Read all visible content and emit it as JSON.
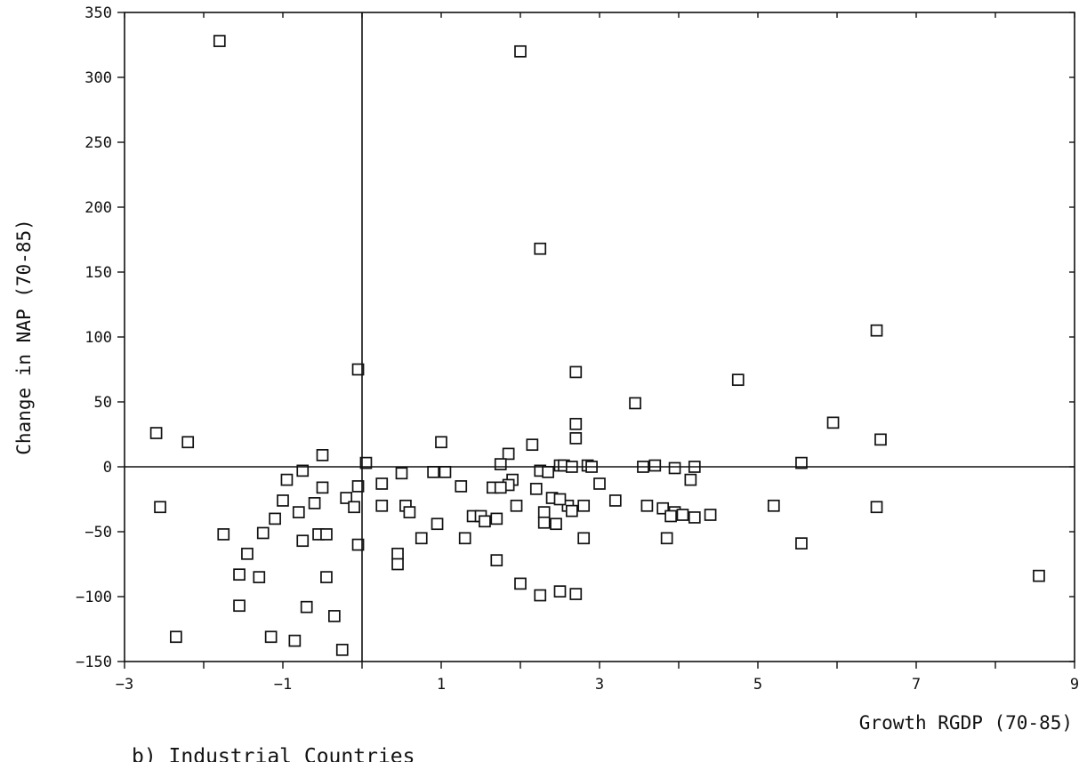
{
  "chart_data": {
    "type": "scatter",
    "title": "",
    "caption": "b) Industrial Countries",
    "xlabel": "Growth RGDP (70-85)",
    "ylabel": "Change in NAP (70-85)",
    "xlim": [
      -3,
      9
    ],
    "ylim": [
      -150,
      350
    ],
    "xticks": [
      -3,
      -1,
      1,
      3,
      5,
      7,
      9
    ],
    "yticks": [
      -150,
      -100,
      -50,
      0,
      50,
      100,
      150,
      200,
      250,
      300,
      350
    ],
    "reference_lines": {
      "x": 0,
      "y": 0
    },
    "marker": "open-square",
    "grid": false,
    "points": [
      [
        -1.8,
        328
      ],
      [
        2.0,
        320
      ],
      [
        2.25,
        168
      ],
      [
        6.5,
        105
      ],
      [
        -0.05,
        75
      ],
      [
        2.7,
        73
      ],
      [
        4.75,
        67
      ],
      [
        3.45,
        49
      ],
      [
        5.95,
        34
      ],
      [
        2.7,
        33
      ],
      [
        -2.6,
        26
      ],
      [
        2.7,
        22
      ],
      [
        6.55,
        21
      ],
      [
        -2.2,
        19
      ],
      [
        1.0,
        19
      ],
      [
        2.15,
        17
      ],
      [
        1.85,
        10
      ],
      [
        -0.5,
        9
      ],
      [
        0.05,
        3
      ],
      [
        5.55,
        3
      ],
      [
        1.75,
        2
      ],
      [
        2.5,
        1
      ],
      [
        2.55,
        1
      ],
      [
        2.65,
        0
      ],
      [
        2.85,
        1
      ],
      [
        2.9,
        0
      ],
      [
        3.55,
        0
      ],
      [
        3.7,
        1
      ],
      [
        3.95,
        -1
      ],
      [
        4.2,
        0
      ],
      [
        -0.75,
        -3
      ],
      [
        0.5,
        -5
      ],
      [
        0.9,
        -4
      ],
      [
        1.05,
        -4
      ],
      [
        2.25,
        -3
      ],
      [
        2.35,
        -4
      ],
      [
        4.15,
        -10
      ],
      [
        -0.95,
        -10
      ],
      [
        1.9,
        -10
      ],
      [
        1.85,
        -14
      ],
      [
        0.25,
        -13
      ],
      [
        1.25,
        -15
      ],
      [
        1.65,
        -16
      ],
      [
        1.75,
        -16
      ],
      [
        2.2,
        -17
      ],
      [
        3.0,
        -13
      ],
      [
        -0.05,
        -15
      ],
      [
        -0.5,
        -16
      ],
      [
        -1.0,
        -26
      ],
      [
        -0.2,
        -24
      ],
      [
        -0.1,
        -31
      ],
      [
        0.25,
        -30
      ],
      [
        0.55,
        -30
      ],
      [
        0.6,
        -35
      ],
      [
        1.95,
        -30
      ],
      [
        2.6,
        -30
      ],
      [
        2.65,
        -34
      ],
      [
        2.8,
        -30
      ],
      [
        3.2,
        -26
      ],
      [
        3.6,
        -30
      ],
      [
        3.8,
        -32
      ],
      [
        3.95,
        -35
      ],
      [
        4.05,
        -37
      ],
      [
        4.2,
        -39
      ],
      [
        4.4,
        -37
      ],
      [
        3.9,
        -38
      ],
      [
        5.2,
        -30
      ],
      [
        6.5,
        -31
      ],
      [
        -2.55,
        -31
      ],
      [
        -1.1,
        -40
      ],
      [
        -0.6,
        -28
      ],
      [
        -0.8,
        -35
      ],
      [
        1.4,
        -38
      ],
      [
        1.5,
        -38
      ],
      [
        1.7,
        -40
      ],
      [
        1.55,
        -42
      ],
      [
        2.3,
        -35
      ],
      [
        2.3,
        -43
      ],
      [
        2.4,
        -24
      ],
      [
        2.5,
        -25
      ],
      [
        2.45,
        -44
      ],
      [
        0.95,
        -44
      ],
      [
        -1.75,
        -52
      ],
      [
        -1.25,
        -51
      ],
      [
        -0.55,
        -52
      ],
      [
        -0.45,
        -52
      ],
      [
        -0.75,
        -57
      ],
      [
        -0.05,
        -60
      ],
      [
        0.75,
        -55
      ],
      [
        1.3,
        -55
      ],
      [
        2.8,
        -55
      ],
      [
        3.85,
        -55
      ],
      [
        5.55,
        -59
      ],
      [
        -1.45,
        -67
      ],
      [
        0.45,
        -67
      ],
      [
        0.45,
        -75
      ],
      [
        1.7,
        -72
      ],
      [
        -1.55,
        -83
      ],
      [
        -1.3,
        -85
      ],
      [
        -0.45,
        -85
      ],
      [
        2.0,
        -90
      ],
      [
        2.25,
        -99
      ],
      [
        2.5,
        -96
      ],
      [
        2.7,
        -98
      ],
      [
        8.55,
        -84
      ],
      [
        -1.55,
        -107
      ],
      [
        -0.7,
        -108
      ],
      [
        -0.35,
        -115
      ],
      [
        -1.15,
        -131
      ],
      [
        -2.35,
        -131
      ],
      [
        -0.85,
        -134
      ],
      [
        -0.25,
        -141
      ]
    ]
  }
}
